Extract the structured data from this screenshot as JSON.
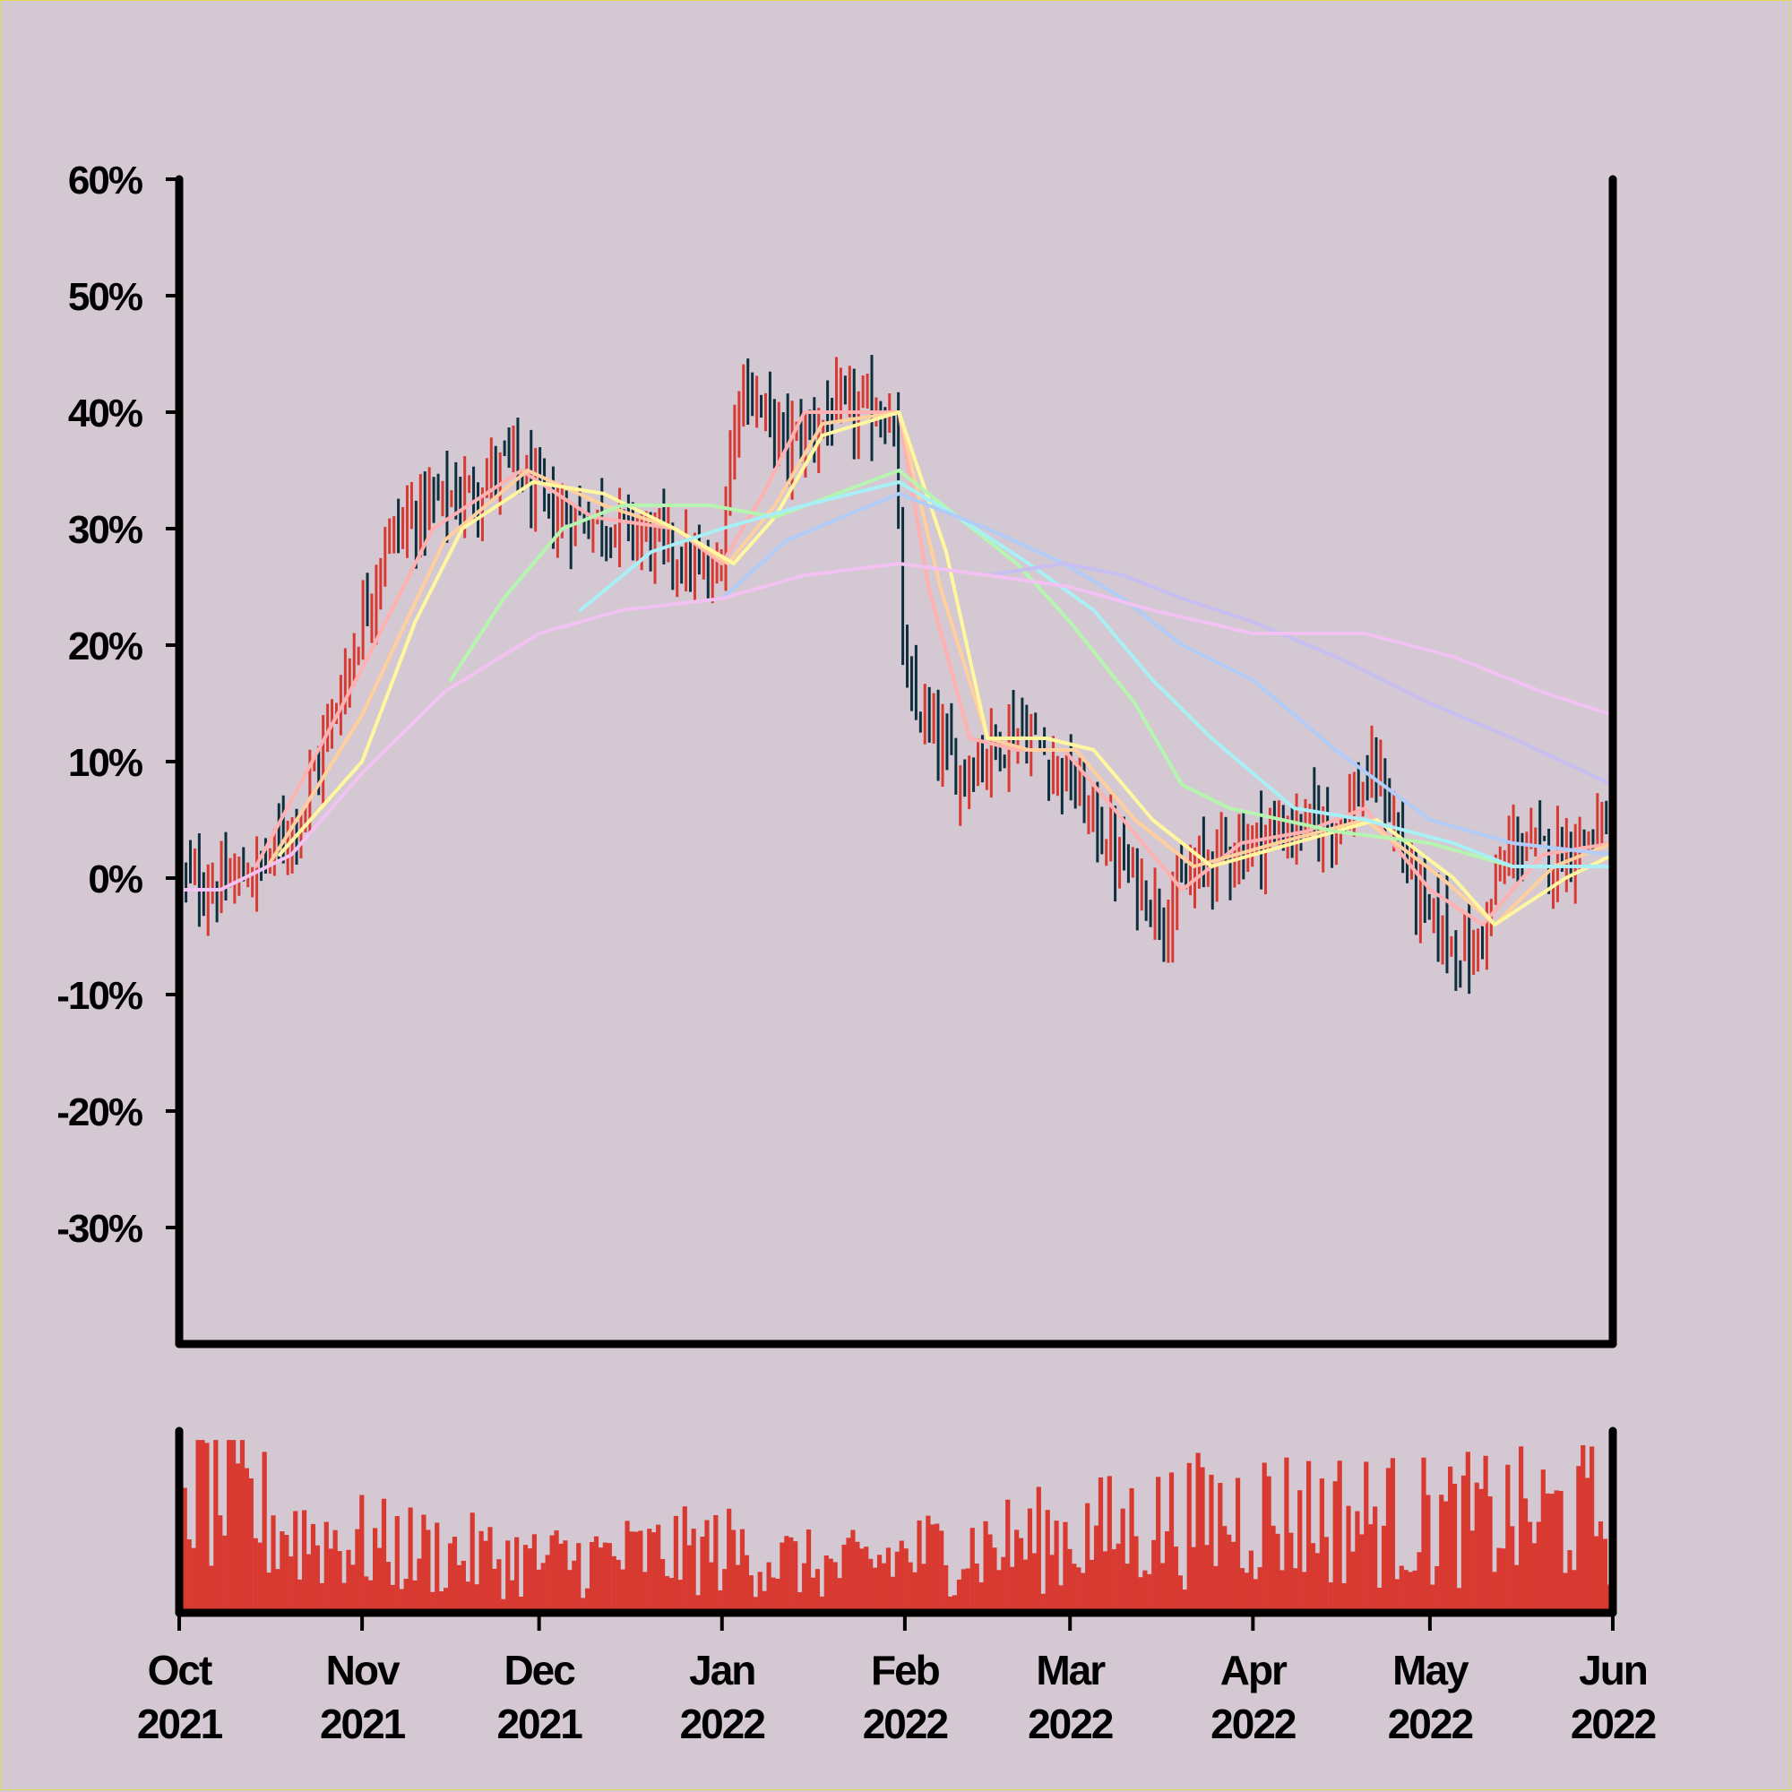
{
  "colors": {
    "background": "#d4c8d2",
    "axis": "#000000",
    "up_bar": "#d83a32",
    "down_bar": "#0e2f3e",
    "volume": "#d83a32"
  },
  "chart_data": {
    "type": "ohlc",
    "title": "",
    "xlabel": "",
    "ylabel": "",
    "ylim": [
      -40,
      60
    ],
    "y_ticks": [
      "60%",
      "50%",
      "40%",
      "30%",
      "20%",
      "10%",
      "0%",
      "-10%",
      "-20%",
      "-30%"
    ],
    "y_tick_values": [
      60,
      50,
      40,
      30,
      20,
      10,
      0,
      -10,
      -20,
      -30
    ],
    "x_ticks": [
      {
        "month": "Oct",
        "year": "2021",
        "date": "2021-10-01"
      },
      {
        "month": "Nov",
        "year": "2021",
        "date": "2021-11-01"
      },
      {
        "month": "Dec",
        "year": "2021",
        "date": "2021-12-01"
      },
      {
        "month": "Jan",
        "year": "2022",
        "date": "2022-01-01"
      },
      {
        "month": "Feb",
        "year": "2022",
        "date": "2022-02-01"
      },
      {
        "month": "Mar",
        "year": "2022",
        "date": "2022-03-01"
      },
      {
        "month": "Apr",
        "year": "2022",
        "date": "2022-04-01"
      },
      {
        "month": "May",
        "year": "2022",
        "date": "2022-05-01"
      },
      {
        "month": "Jun",
        "year": "2022",
        "date": "2022-06-01"
      }
    ],
    "xlim": [
      "2021-10-01",
      "2022-06-01"
    ],
    "price_path": [
      [
        "2021-10-01",
        0
      ],
      [
        "2021-10-08",
        -1
      ],
      [
        "2021-10-15",
        1
      ],
      [
        "2021-10-22",
        6
      ],
      [
        "2021-10-29",
        17
      ],
      [
        "2021-11-05",
        29
      ],
      [
        "2021-11-12",
        32
      ],
      [
        "2021-11-19",
        33
      ],
      [
        "2021-11-26",
        36
      ],
      [
        "2021-12-03",
        31
      ],
      [
        "2021-12-10",
        31
      ],
      [
        "2021-12-17",
        30
      ],
      [
        "2021-12-24",
        28
      ],
      [
        "2021-12-31",
        25
      ],
      [
        "2022-01-04",
        43
      ],
      [
        "2022-01-12",
        37
      ],
      [
        "2022-01-20",
        40
      ],
      [
        "2022-01-30",
        40
      ],
      [
        "2022-02-01",
        16
      ],
      [
        "2022-02-10",
        9
      ],
      [
        "2022-02-20",
        13
      ],
      [
        "2022-02-28",
        9
      ],
      [
        "2022-03-10",
        1
      ],
      [
        "2022-03-17",
        -3
      ],
      [
        "2022-03-25",
        2
      ],
      [
        "2022-04-05",
        4
      ],
      [
        "2022-04-15",
        5
      ],
      [
        "2022-04-22",
        9
      ],
      [
        "2022-04-30",
        -3
      ],
      [
        "2022-05-08",
        -7
      ],
      [
        "2022-05-15",
        3
      ],
      [
        "2022-05-22",
        2
      ],
      [
        "2022-06-01",
        5
      ]
    ],
    "moving_averages": [
      {
        "color": "#ffb0b0",
        "points": [
          [
            "2021-10-14",
            1
          ],
          [
            "2021-11-01",
            18
          ],
          [
            "2021-11-13",
            30
          ],
          [
            "2021-11-28",
            35
          ],
          [
            "2021-12-10",
            31
          ],
          [
            "2021-12-24",
            30
          ],
          [
            "2022-01-01",
            27
          ],
          [
            "2022-01-08",
            33
          ],
          [
            "2022-01-15",
            40
          ],
          [
            "2022-01-22",
            40
          ],
          [
            "2022-01-31",
            40
          ],
          [
            "2022-02-05",
            25
          ],
          [
            "2022-02-12",
            12
          ],
          [
            "2022-02-20",
            11
          ],
          [
            "2022-02-28",
            11
          ],
          [
            "2022-03-10",
            5
          ],
          [
            "2022-03-20",
            -1
          ],
          [
            "2022-03-30",
            3
          ],
          [
            "2022-04-10",
            4
          ],
          [
            "2022-04-20",
            6
          ],
          [
            "2022-05-01",
            -1
          ],
          [
            "2022-05-10",
            -4
          ],
          [
            "2022-05-20",
            2
          ],
          [
            "2022-06-01",
            3
          ]
        ]
      },
      {
        "color": "#ffcf9e",
        "points": [
          [
            "2021-10-16",
            1
          ],
          [
            "2021-11-01",
            14
          ],
          [
            "2021-11-15",
            29
          ],
          [
            "2021-11-29",
            35
          ],
          [
            "2021-12-12",
            32
          ],
          [
            "2021-12-24",
            30
          ],
          [
            "2022-01-02",
            27
          ],
          [
            "2022-01-10",
            32
          ],
          [
            "2022-01-18",
            39
          ],
          [
            "2022-01-31",
            40
          ],
          [
            "2022-02-07",
            25
          ],
          [
            "2022-02-15",
            12
          ],
          [
            "2022-02-22",
            11
          ],
          [
            "2022-03-02",
            11
          ],
          [
            "2022-03-12",
            5
          ],
          [
            "2022-03-22",
            1
          ],
          [
            "2022-04-05",
            3
          ],
          [
            "2022-04-20",
            5
          ],
          [
            "2022-05-03",
            0
          ],
          [
            "2022-05-12",
            -4
          ],
          [
            "2022-05-22",
            1
          ],
          [
            "2022-06-01",
            3
          ]
        ]
      },
      {
        "color": "#fff7a0",
        "points": [
          [
            "2021-10-18",
            2
          ],
          [
            "2021-11-01",
            10
          ],
          [
            "2021-11-10",
            22
          ],
          [
            "2021-11-18",
            30
          ],
          [
            "2021-11-30",
            34
          ],
          [
            "2021-12-12",
            33
          ],
          [
            "2021-12-24",
            30
          ],
          [
            "2022-01-03",
            27
          ],
          [
            "2022-01-10",
            31
          ],
          [
            "2022-01-18",
            38
          ],
          [
            "2022-01-31",
            40
          ],
          [
            "2022-02-08",
            28
          ],
          [
            "2022-02-15",
            12
          ],
          [
            "2022-02-25",
            12
          ],
          [
            "2022-03-05",
            11
          ],
          [
            "2022-03-15",
            5
          ],
          [
            "2022-03-25",
            1
          ],
          [
            "2022-04-08",
            3
          ],
          [
            "2022-04-22",
            5
          ],
          [
            "2022-05-05",
            0
          ],
          [
            "2022-05-12",
            -4
          ],
          [
            "2022-05-24",
            0
          ],
          [
            "2022-06-01",
            2
          ]
        ]
      },
      {
        "color": "#b6f5b0",
        "points": [
          [
            "2021-11-16",
            17
          ],
          [
            "2021-11-25",
            24
          ],
          [
            "2021-12-05",
            30
          ],
          [
            "2021-12-15",
            32
          ],
          [
            "2021-12-30",
            32
          ],
          [
            "2022-01-10",
            31
          ],
          [
            "2022-01-31",
            35
          ],
          [
            "2022-02-10",
            31
          ],
          [
            "2022-02-20",
            27
          ],
          [
            "2022-03-01",
            22
          ],
          [
            "2022-03-12",
            15
          ],
          [
            "2022-03-20",
            8
          ],
          [
            "2022-03-28",
            6
          ],
          [
            "2022-04-15",
            4
          ],
          [
            "2022-05-01",
            3
          ],
          [
            "2022-05-15",
            1
          ],
          [
            "2022-06-01",
            1
          ]
        ]
      },
      {
        "color": "#a8f0f6",
        "points": [
          [
            "2021-12-08",
            23
          ],
          [
            "2021-12-20",
            28
          ],
          [
            "2022-01-01",
            30
          ],
          [
            "2022-01-15",
            32
          ],
          [
            "2022-01-31",
            34
          ],
          [
            "2022-02-10",
            31
          ],
          [
            "2022-02-22",
            27
          ],
          [
            "2022-03-05",
            23
          ],
          [
            "2022-03-15",
            17
          ],
          [
            "2022-03-25",
            12
          ],
          [
            "2022-04-08",
            6
          ],
          [
            "2022-04-20",
            5
          ],
          [
            "2022-05-05",
            3
          ],
          [
            "2022-05-15",
            1
          ],
          [
            "2022-06-01",
            1
          ]
        ]
      },
      {
        "color": "#b0ccf7",
        "points": [
          [
            "2022-01-01",
            24
          ],
          [
            "2022-01-12",
            29
          ],
          [
            "2022-01-31",
            33
          ],
          [
            "2022-02-15",
            30
          ],
          [
            "2022-02-28",
            27
          ],
          [
            "2022-03-10",
            24
          ],
          [
            "2022-03-20",
            20
          ],
          [
            "2022-04-01",
            17
          ],
          [
            "2022-04-15",
            11
          ],
          [
            "2022-05-01",
            5
          ],
          [
            "2022-05-15",
            3
          ],
          [
            "2022-06-01",
            2
          ]
        ]
      },
      {
        "color": "#c7bff2",
        "points": [
          [
            "2022-02-15",
            26
          ],
          [
            "2022-02-28",
            27
          ],
          [
            "2022-03-10",
            26
          ],
          [
            "2022-03-20",
            24
          ],
          [
            "2022-04-01",
            22
          ],
          [
            "2022-04-15",
            19
          ],
          [
            "2022-05-01",
            15
          ],
          [
            "2022-05-15",
            12
          ],
          [
            "2022-06-01",
            8
          ]
        ]
      },
      {
        "color": "#f2c2f2",
        "points": [
          [
            "2021-10-01",
            -1
          ],
          [
            "2021-10-08",
            -1
          ],
          [
            "2021-10-20",
            2
          ],
          [
            "2021-11-01",
            9
          ],
          [
            "2021-11-15",
            16
          ],
          [
            "2021-12-01",
            21
          ],
          [
            "2021-12-15",
            23
          ],
          [
            "2022-01-01",
            24
          ],
          [
            "2022-01-15",
            26
          ],
          [
            "2022-01-31",
            27
          ],
          [
            "2022-02-15",
            26
          ],
          [
            "2022-03-01",
            25
          ],
          [
            "2022-03-15",
            23
          ],
          [
            "2022-04-01",
            21
          ],
          [
            "2022-04-20",
            21
          ],
          [
            "2022-05-05",
            19
          ],
          [
            "2022-05-20",
            16
          ],
          [
            "2022-06-01",
            14
          ]
        ]
      }
    ],
    "volume": {
      "ylim": [
        0,
        1
      ],
      "level_path": [
        [
          "2021-10-01",
          0.78
        ],
        [
          "2021-10-20",
          0.45
        ],
        [
          "2021-11-05",
          0.36
        ],
        [
          "2021-12-01",
          0.28
        ],
        [
          "2022-01-01",
          0.35
        ],
        [
          "2022-01-20",
          0.24
        ],
        [
          "2022-02-01",
          0.32
        ],
        [
          "2022-03-01",
          0.42
        ],
        [
          "2022-04-01",
          0.55
        ],
        [
          "2022-05-01",
          0.5
        ],
        [
          "2022-06-01",
          0.55
        ]
      ]
    }
  }
}
